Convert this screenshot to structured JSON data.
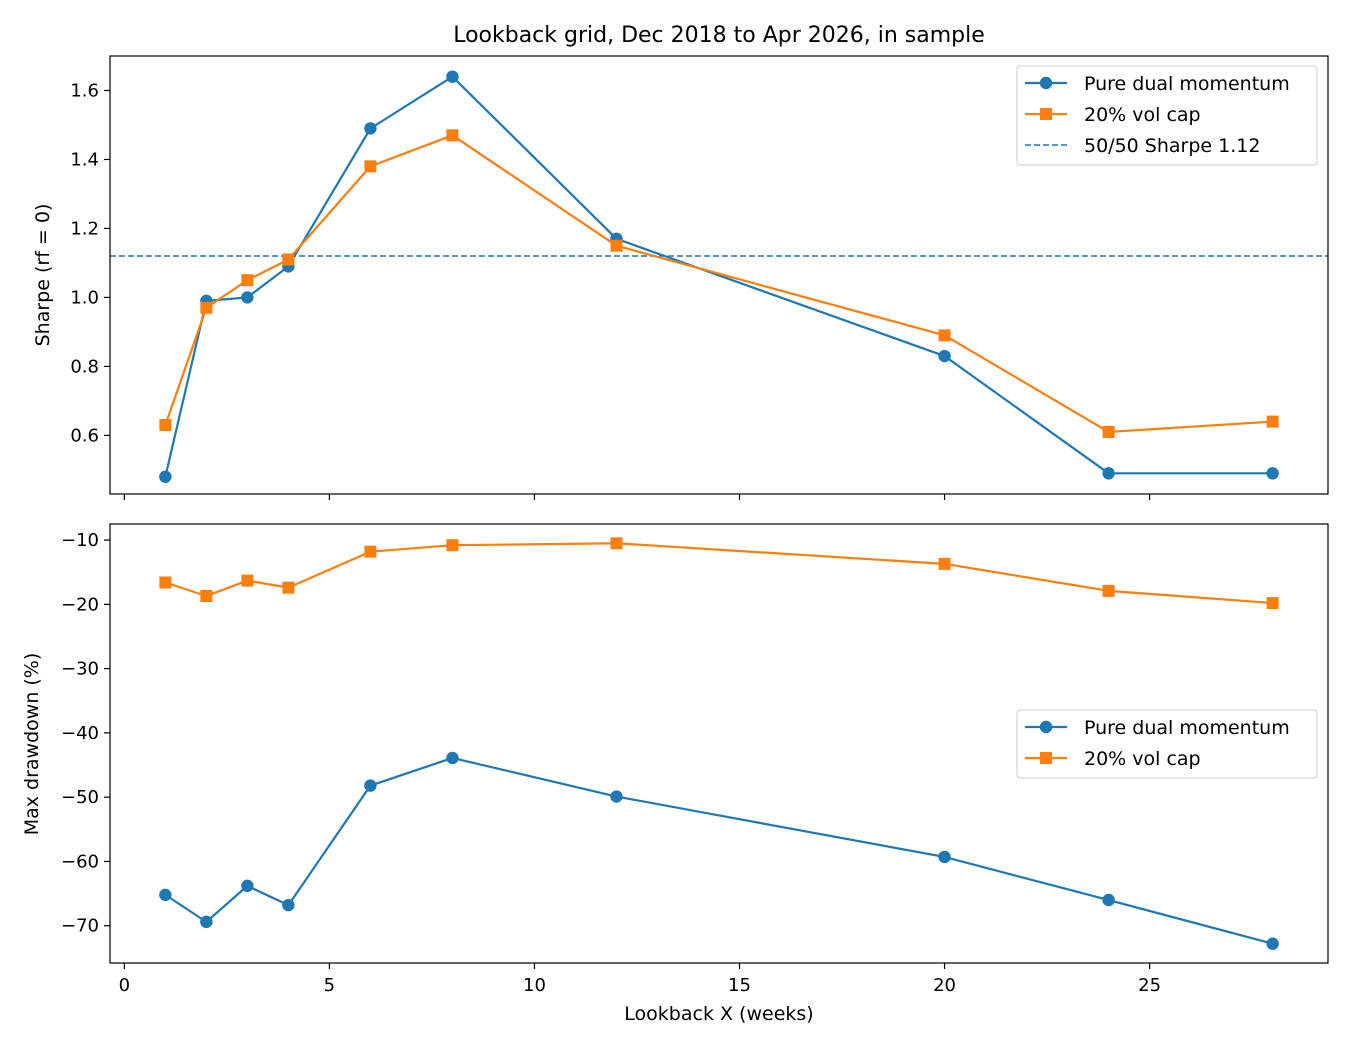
{
  "figure_title": "Lookback grid, Dec 2018 to Apr 2026, in sample",
  "colors": {
    "pure": "#1f77b4",
    "volcap": "#ff7f0e",
    "reference": "#1f77b4"
  },
  "chart_data": [
    {
      "type": "line",
      "title": "Lookback grid, Dec 2018 to Apr 2026, in sample",
      "xlabel": "",
      "ylabel": "Sharpe (rf = 0)",
      "xlim": [
        -0.35,
        29.35
      ],
      "ylim": [
        0.43,
        1.7
      ],
      "xticks": [
        0,
        5,
        10,
        15,
        20,
        25
      ],
      "yticks": [
        0.6,
        0.8,
        1.0,
        1.2,
        1.4,
        1.6
      ],
      "ytick_labels": [
        "0.6",
        "0.8",
        "1.0",
        "1.2",
        "1.4",
        "1.6"
      ],
      "x": [
        1,
        2,
        3,
        4,
        6,
        8,
        12,
        20,
        24,
        28
      ],
      "series": [
        {
          "name": "Pure dual momentum",
          "marker": "circle",
          "values": [
            0.48,
            0.99,
            1.0,
            1.09,
            1.49,
            1.64,
            1.17,
            0.83,
            0.49,
            0.49
          ]
        },
        {
          "name": "20% vol cap",
          "marker": "square",
          "values": [
            0.63,
            0.97,
            1.05,
            1.11,
            1.38,
            1.47,
            1.15,
            0.89,
            0.61,
            0.64
          ]
        }
      ],
      "reference_line": {
        "name": "50/50 Sharpe 1.12",
        "value": 1.12,
        "style": "dashed"
      },
      "legend": "top-right"
    },
    {
      "type": "line",
      "xlabel": "Lookback X (weeks)",
      "ylabel": "Max drawdown (%)",
      "xlim": [
        -0.35,
        29.35
      ],
      "ylim": [
        -75.8,
        -7.5
      ],
      "xticks": [
        0,
        5,
        10,
        15,
        20,
        25
      ],
      "xtick_labels": [
        "0",
        "5",
        "10",
        "15",
        "20",
        "25"
      ],
      "yticks": [
        -70,
        -60,
        -50,
        -40,
        -30,
        -20,
        -10
      ],
      "ytick_labels": [
        "−70",
        "−60",
        "−50",
        "−40",
        "−30",
        "−20",
        "−10"
      ],
      "x": [
        1,
        2,
        3,
        4,
        6,
        8,
        12,
        20,
        24,
        28
      ],
      "series": [
        {
          "name": "Pure dual momentum",
          "marker": "circle",
          "values": [
            -65.2,
            -69.4,
            -63.8,
            -66.8,
            -48.2,
            -43.9,
            -49.9,
            -59.3,
            -66.0,
            -72.8
          ]
        },
        {
          "name": "20% vol cap",
          "marker": "square",
          "values": [
            -16.6,
            -18.7,
            -16.3,
            -17.4,
            -11.8,
            -10.8,
            -10.5,
            -13.7,
            -17.9,
            -19.8
          ]
        }
      ],
      "legend": "center-right"
    }
  ]
}
